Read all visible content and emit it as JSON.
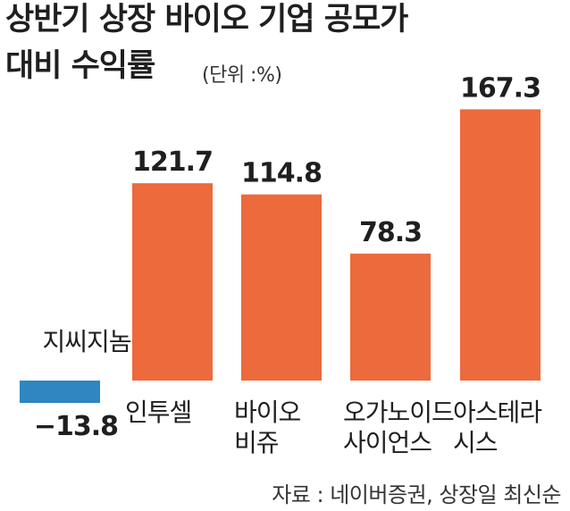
{
  "title_line1": "상반기 상장 바이오 기업 공모가",
  "title_line2": "대비 수익률",
  "unit_label": "(단위 :%)",
  "source_label": "자료 : 네이버증권, 상장일 최신순",
  "colors": {
    "positive": "#ec6a3c",
    "negative": "#2f86c1",
    "text": "#1f1f1f"
  },
  "chart_data": {
    "type": "bar",
    "title": "상반기 상장 바이오 기업 공모가 대비 수익률",
    "unit": "%",
    "categories": [
      {
        "label": [
          "지씨지놈"
        ],
        "value": -13.8,
        "value_label": "−13.8"
      },
      {
        "label": [
          "인투셀"
        ],
        "value": 121.7,
        "value_label": "121.7"
      },
      {
        "label": [
          "바이오",
          "비쥬"
        ],
        "value": 114.8,
        "value_label": "114.8"
      },
      {
        "label": [
          "오가노이드",
          "사이언스"
        ],
        "value": 78.3,
        "value_label": "78.3"
      },
      {
        "label": [
          "아스테라",
          "시스"
        ],
        "value": 167.3,
        "value_label": "167.3"
      }
    ],
    "values": [
      -13.8,
      121.7,
      114.8,
      78.3,
      167.3
    ]
  }
}
